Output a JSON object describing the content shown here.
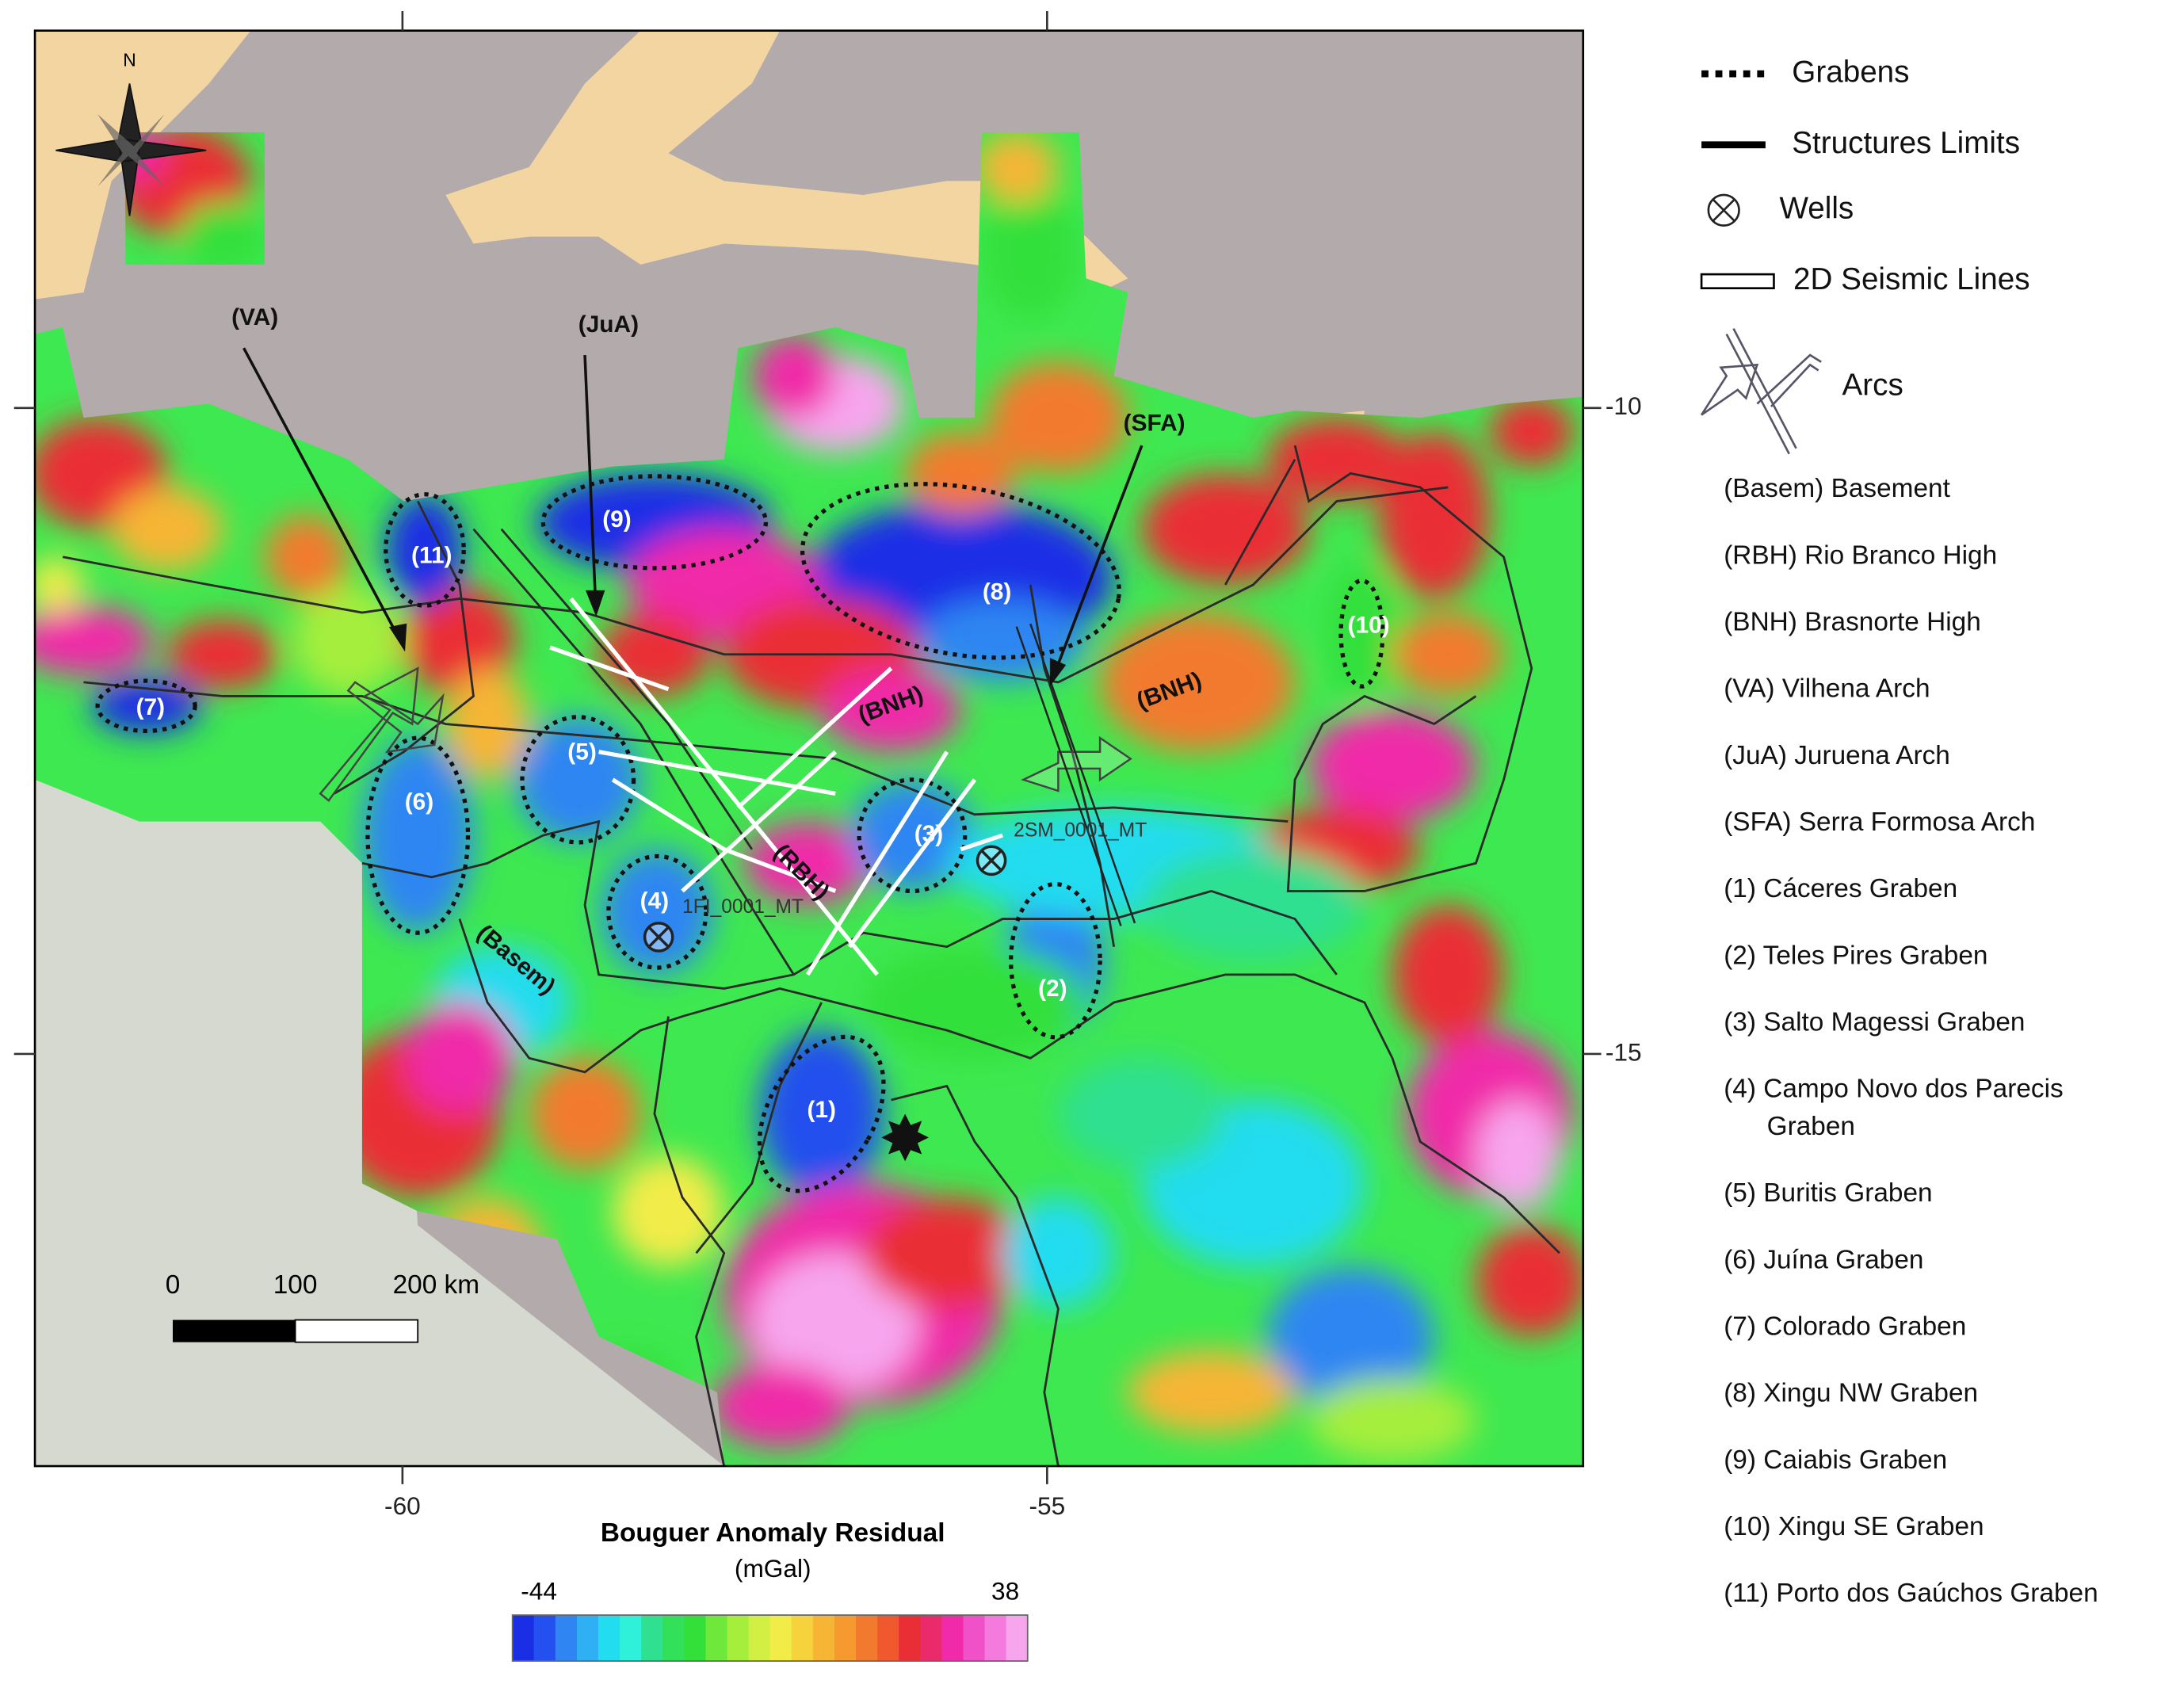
{
  "map": {
    "compass": "N",
    "lon_ticks": [
      -60,
      -55
    ],
    "lat_ticks": [
      -10,
      -15
    ],
    "scale_bar": {
      "ticks": [
        {
          "value": 0,
          "label": "0"
        },
        {
          "value": 100,
          "label": "100"
        },
        {
          "value": 200,
          "label": "200 km"
        }
      ]
    },
    "arc_labels": [
      "(VA)",
      "(JuA)",
      "(SFA)"
    ],
    "structure_labels": [
      "(BNH)",
      "(BNH)",
      "(RBH)",
      "(Basem)"
    ],
    "graben_labels": [
      "(1)",
      "(2)",
      "(3)",
      "(4)",
      "(5)",
      "(6)",
      "(7)",
      "(8)",
      "(9)",
      "(10)",
      "(11)"
    ],
    "wells": [
      "2SM_0001_MT",
      "1FI_0001_MT"
    ]
  },
  "colorbar": {
    "title": "Bouguer Anomaly Residual",
    "unit": "(mGal)",
    "min": -44,
    "max": 38,
    "colors": [
      "#1a2ee6",
      "#2350ee",
      "#2f86f2",
      "#2fb0f4",
      "#22dcef",
      "#2ff0d8",
      "#2fe090",
      "#33e05a",
      "#33e03a",
      "#6ee83a",
      "#a6ee3c",
      "#d2f044",
      "#f2ec48",
      "#f6d23c",
      "#f6b534",
      "#f69a30",
      "#f27a2e",
      "#f0582e",
      "#ea2e36",
      "#ea2a6a",
      "#f02aa8",
      "#f050c8",
      "#f47ade",
      "#f7a6ee"
    ]
  },
  "legend": {
    "symbols": [
      "Grabens",
      "Structures Limits",
      "Wells",
      "2D Seismic Lines",
      "Arcs"
    ],
    "abbreviations": [
      "(Basem) Basement",
      "(RBH) Rio Branco High",
      "(BNH) Brasnorte High",
      "(VA) Vilhena Arch",
      "(JuA) Juruena Arch",
      "(SFA) Serra Formosa Arch",
      "(1) Cáceres Graben",
      "(2) Teles Pires Graben",
      "(3) Salto Magessi Graben",
      [
        "(4) Campo Novo dos Parecis",
        "Graben"
      ],
      "(5) Buritis Graben",
      "(6) Juína Graben",
      "(7) Colorado Graben",
      "(8) Xingu NW Graben",
      "(9) Caiabis Graben",
      "(10) Xingu SE Graben",
      "(11) Porto dos Gaúchos Graben"
    ]
  }
}
